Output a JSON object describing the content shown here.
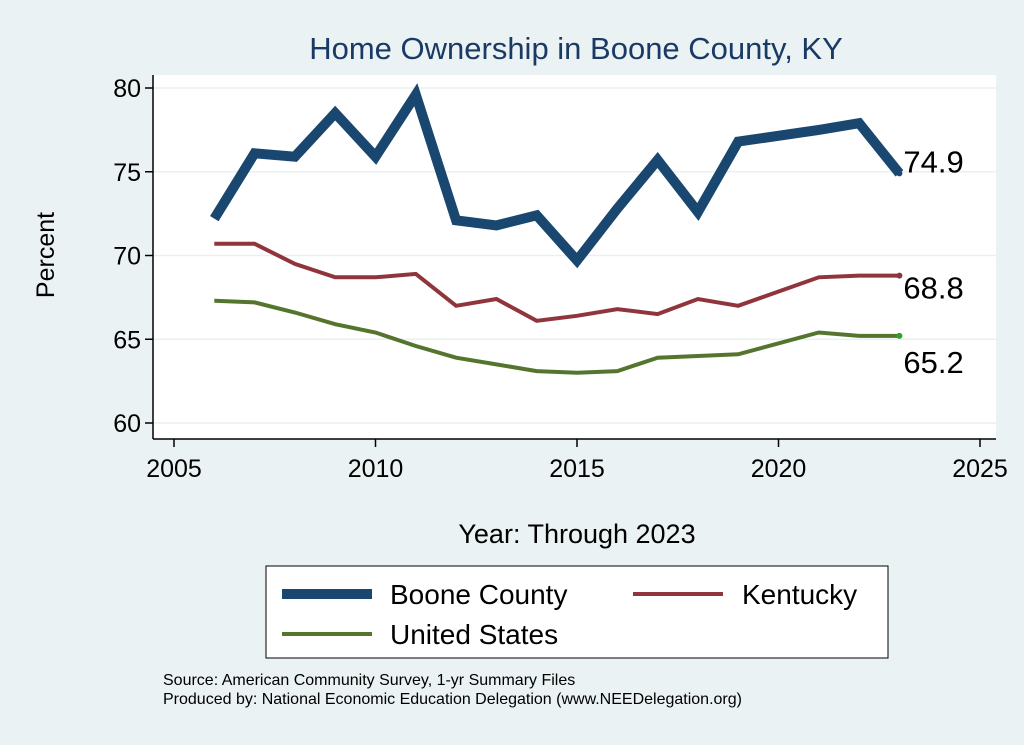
{
  "chart_data": {
    "type": "line",
    "title": "Home Ownership in Boone County, KY",
    "xlabel": "Year: Through 2023",
    "ylabel": "Percent",
    "xlim": [
      2005,
      2025
    ],
    "ylim": [
      60,
      80
    ],
    "xticks": [
      2005,
      2010,
      2015,
      2020,
      2025
    ],
    "yticks": [
      60,
      65,
      70,
      75,
      80
    ],
    "grid": true,
    "legend_position": "bottom",
    "series": [
      {
        "name": "Boone County",
        "color": "#1a476f",
        "x": [
          2006,
          2007,
          2008,
          2009,
          2010,
          2011,
          2012,
          2013,
          2014,
          2015,
          2016,
          2017,
          2018,
          2019,
          2021,
          2022,
          2023
        ],
        "values": [
          72.2,
          76.1,
          75.9,
          78.5,
          75.9,
          79.6,
          72.1,
          71.8,
          72.4,
          69.7,
          72.8,
          75.7,
          72.6,
          76.8,
          77.5,
          77.9,
          74.9
        ],
        "end_label": "74.9"
      },
      {
        "name": "Kentucky",
        "color": "#90353b",
        "x": [
          2006,
          2007,
          2008,
          2009,
          2010,
          2011,
          2012,
          2013,
          2014,
          2015,
          2016,
          2017,
          2018,
          2019,
          2021,
          2022,
          2023
        ],
        "values": [
          70.7,
          70.7,
          69.5,
          68.7,
          68.7,
          68.9,
          67.0,
          67.4,
          66.1,
          66.4,
          66.8,
          66.5,
          67.4,
          67.0,
          68.7,
          68.8,
          68.8
        ],
        "end_label": "68.8"
      },
      {
        "name": "United States",
        "color": "#55752f",
        "x": [
          2006,
          2007,
          2008,
          2009,
          2010,
          2011,
          2012,
          2013,
          2014,
          2015,
          2016,
          2017,
          2018,
          2019,
          2021,
          2022,
          2023
        ],
        "values": [
          67.3,
          67.2,
          66.6,
          65.9,
          65.4,
          64.6,
          63.9,
          63.5,
          63.1,
          63.0,
          63.1,
          63.9,
          64.0,
          64.1,
          65.4,
          65.2,
          65.2
        ],
        "end_label": "65.2"
      }
    ]
  },
  "notes": {
    "source": "Source: American Community Survey, 1-yr Summary Files",
    "produced_by": "Produced by: National Economic Education Delegation (www.NEEDelegation.org)"
  }
}
